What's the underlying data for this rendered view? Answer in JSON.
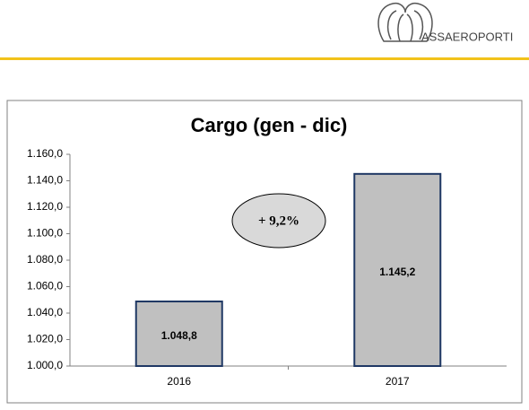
{
  "logo": "ASSAEROPORTI",
  "chart_data": {
    "type": "bar",
    "title": "Cargo (gen - dic)",
    "categories": [
      "2016",
      "2017"
    ],
    "values": [
      1048.8,
      1145.2
    ],
    "value_labels": [
      "1.048,8",
      "1.145,2"
    ],
    "color": "#c0c0c0",
    "ylim": [
      1000,
      1160
    ],
    "yticks": [
      {
        "value": 1000,
        "label": "1.000,0"
      },
      {
        "value": 1020,
        "label": "1.020,0"
      },
      {
        "value": 1040,
        "label": "1.040,0"
      },
      {
        "value": 1060,
        "label": "1.060,0"
      },
      {
        "value": 1080,
        "label": "1.080,0"
      },
      {
        "value": 1100,
        "label": "1.100,0"
      },
      {
        "value": 1120,
        "label": "1.120,0"
      },
      {
        "value": 1140,
        "label": "1.140,0"
      },
      {
        "value": 1160,
        "label": "1.160,0"
      }
    ],
    "annotation": "+ 9,2%"
  }
}
